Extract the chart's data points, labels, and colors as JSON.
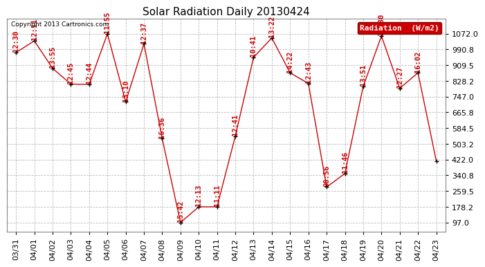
{
  "title": "Solar Radiation Daily 20130424",
  "copyright": "Copyright 2013 Cartronics.com",
  "legend_label": "Radiation  (W/m2)",
  "x_labels": [
    "03/31",
    "04/01",
    "04/02",
    "04/03",
    "04/04",
    "04/05",
    "04/06",
    "04/07",
    "04/08",
    "04/09",
    "04/10",
    "04/11",
    "04/12",
    "04/13",
    "04/14",
    "04/15",
    "04/16",
    "04/17",
    "04/18",
    "04/19",
    "04/20",
    "04/21",
    "04/22",
    "04/23"
  ],
  "y_values": [
    975,
    1035,
    893,
    812,
    810,
    1072,
    720,
    1020,
    530,
    97,
    178,
    178,
    543,
    950,
    1050,
    870,
    815,
    280,
    350,
    800,
    1060,
    790,
    870,
    415
  ],
  "time_labels": [
    "12:30",
    "12:11",
    "13:55",
    "12:45",
    "12:44",
    "11:55",
    "13:10",
    "12:37",
    "16:36",
    "15:42",
    "12:13",
    "11:11",
    "12:41",
    "10:41",
    "13:22",
    "14:22",
    "12:43",
    "08:56",
    "11:46",
    "13:51",
    "15:30",
    "12:27",
    "16:02",
    ""
  ],
  "y_ticks": [
    97.0,
    178.2,
    259.5,
    340.8,
    422.0,
    503.2,
    584.5,
    665.8,
    747.0,
    828.2,
    909.5,
    990.8,
    1072.0
  ],
  "line_color": "#cc0000",
  "marker_color": "#000000",
  "grid_color": "#bbbbbb",
  "bg_color": "#ffffff",
  "legend_bg": "#cc0000",
  "legend_text_color": "#ffffff",
  "title_fontsize": 11,
  "tick_fontsize": 8,
  "label_fontsize": 8,
  "time_fontsize": 7.5
}
